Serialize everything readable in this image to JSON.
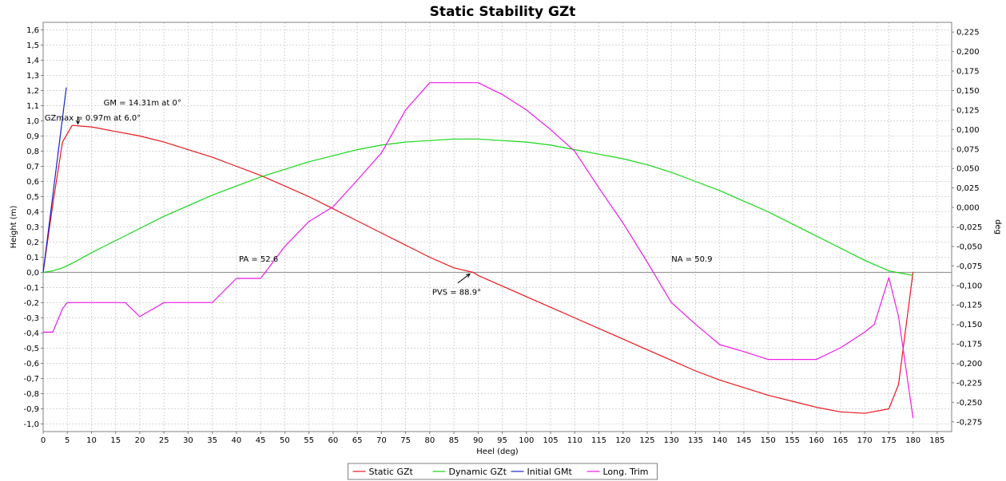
{
  "chart_data": {
    "type": "line",
    "title": "Static Stability GZt",
    "xlabel": "Heel (deg)",
    "ylabel": "Height (m)",
    "y2label": "deg",
    "xlim": [
      0,
      188
    ],
    "ylim": [
      -1.05,
      1.65
    ],
    "y2lim": [
      -0.2875,
      0.2375
    ],
    "xticks": [
      0,
      5,
      10,
      15,
      20,
      25,
      30,
      35,
      40,
      45,
      50,
      55,
      60,
      65,
      70,
      75,
      80,
      85,
      90,
      95,
      100,
      105,
      110,
      115,
      120,
      125,
      130,
      135,
      140,
      145,
      150,
      155,
      160,
      165,
      170,
      175,
      180,
      185
    ],
    "yticks": [
      "1,6",
      "1,5",
      "1,4",
      "1,3",
      "1,2",
      "1,1",
      "1,0",
      "0,9",
      "0,8",
      "0,7",
      "0,6",
      "0,5",
      "0,4",
      "0,3",
      "0,2",
      "0,1",
      "0,0",
      "-0,1",
      "-0,2",
      "-0,3",
      "-0,4",
      "-0,5",
      "-0,6",
      "-0,7",
      "-0,8",
      "-0,9",
      "-1,0"
    ],
    "y2ticks": [
      "0,225",
      "0,200",
      "0,175",
      "0,150",
      "0,125",
      "0,100",
      "0,075",
      "0,050",
      "0,025",
      "0,000",
      "-0,025",
      "-0,050",
      "-0,075",
      "-0,100",
      "-0,125",
      "-0,150",
      "-0,175",
      "-0,200",
      "-0,225",
      "-0,250",
      "-0,275"
    ],
    "grid": true,
    "legend_position": "bottom",
    "series": [
      {
        "name": "Static GZt",
        "color": "#e8161c",
        "axis": "left",
        "x": [
          0,
          2,
          4,
          6,
          10,
          15,
          20,
          25,
          30,
          35,
          40,
          45,
          50,
          55,
          60,
          65,
          70,
          75,
          80,
          85,
          89,
          90,
          95,
          100,
          105,
          110,
          115,
          120,
          125,
          130,
          135,
          140,
          145,
          150,
          155,
          160,
          165,
          170,
          175,
          177,
          180
        ],
        "y": [
          0,
          0.45,
          0.86,
          0.97,
          0.96,
          0.93,
          0.9,
          0.86,
          0.81,
          0.76,
          0.7,
          0.64,
          0.57,
          0.5,
          0.42,
          0.34,
          0.26,
          0.18,
          0.1,
          0.03,
          0,
          -0.02,
          -0.09,
          -0.16,
          -0.23,
          -0.3,
          -0.37,
          -0.44,
          -0.51,
          -0.58,
          -0.65,
          -0.71,
          -0.76,
          -0.81,
          -0.85,
          -0.89,
          -0.92,
          -0.93,
          -0.9,
          -0.74,
          0
        ]
      },
      {
        "name": "Dynamic GZt",
        "color": "#16d616",
        "axis": "left",
        "x": [
          0,
          2,
          4,
          6,
          10,
          15,
          20,
          25,
          30,
          35,
          40,
          45,
          50,
          55,
          60,
          65,
          70,
          75,
          80,
          85,
          90,
          95,
          100,
          105,
          110,
          115,
          120,
          125,
          130,
          135,
          140,
          145,
          150,
          155,
          160,
          165,
          170,
          175,
          180
        ],
        "y": [
          0,
          0.01,
          0.03,
          0.06,
          0.13,
          0.21,
          0.29,
          0.37,
          0.44,
          0.51,
          0.57,
          0.63,
          0.68,
          0.73,
          0.77,
          0.81,
          0.84,
          0.86,
          0.87,
          0.88,
          0.88,
          0.87,
          0.86,
          0.84,
          0.81,
          0.78,
          0.75,
          0.71,
          0.66,
          0.6,
          0.54,
          0.47,
          0.4,
          0.32,
          0.24,
          0.16,
          0.08,
          0.01,
          -0.02
        ]
      },
      {
        "name": "Initial GMt",
        "color": "#1a24cc",
        "axis": "left",
        "x": [
          0,
          4.8
        ],
        "y": [
          0,
          1.22
        ]
      },
      {
        "name": "Long. Trim",
        "color": "#ee1bee",
        "axis": "right",
        "x": [
          0,
          2,
          4,
          5,
          10,
          15,
          17,
          20,
          25,
          30,
          35,
          40,
          45,
          50,
          55,
          60,
          65,
          70,
          75,
          80,
          85,
          90,
          95,
          100,
          105,
          110,
          115,
          120,
          125,
          130,
          135,
          140,
          145,
          150,
          155,
          160,
          165,
          170,
          172,
          175,
          177,
          180
        ],
        "y": [
          -0.16,
          -0.16,
          -0.13,
          -0.122,
          -0.122,
          -0.122,
          -0.122,
          -0.14,
          -0.122,
          -0.122,
          -0.122,
          -0.091,
          -0.091,
          -0.05,
          -0.018,
          0.001,
          0.035,
          0.07,
          0.125,
          0.16,
          0.16,
          0.16,
          0.145,
          0.125,
          0.1,
          0.072,
          0.025,
          -0.02,
          -0.07,
          -0.122,
          -0.15,
          -0.176,
          -0.185,
          -0.195,
          -0.195,
          -0.195,
          -0.18,
          -0.16,
          -0.15,
          -0.09,
          -0.14,
          -0.27
        ]
      }
    ],
    "annotations": [
      {
        "text": "GM = 14.31m at 0°",
        "x": 12.5,
        "y": 1.12
      },
      {
        "text": "GZmax = 0.97m at 6.0°",
        "x": 0.3,
        "y": 1.02
      },
      {
        "text": "PA = 52.6",
        "x": 40.5,
        "y": 0.09
      },
      {
        "text": "NA = 50.9",
        "x": 130,
        "y": 0.09
      },
      {
        "text": "PVS = 88.9°",
        "x": 80.5,
        "y": -0.13
      }
    ],
    "arrows": [
      {
        "from": [
          7.2,
          1.03
        ],
        "to": [
          7.2,
          0.98
        ]
      },
      {
        "from": [
          85.8,
          -0.07
        ],
        "to": [
          88.3,
          -0.01
        ]
      }
    ]
  }
}
